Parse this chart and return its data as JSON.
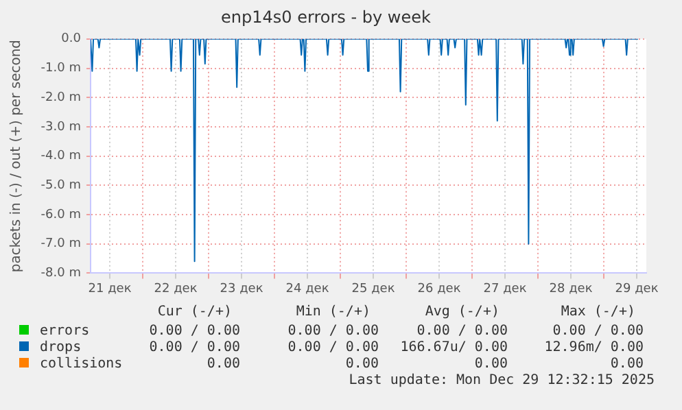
{
  "chart_data": {
    "type": "line",
    "title": "enp14s0 errors - by week",
    "ylabel": "packets in (-) / out (+) per second",
    "xlim": [
      "2025-12-21T05:00",
      "2025-12-29T15:30"
    ],
    "xticks": [
      {
        "value": "2025-12-21T12:00",
        "label": "21 дек"
      },
      {
        "value": "2025-12-22T00:00",
        "label": null
      },
      {
        "value": "2025-12-22T12:00",
        "label": "22 дек"
      },
      {
        "value": "2025-12-23T00:00",
        "label": null
      },
      {
        "value": "2025-12-23T12:00",
        "label": "23 дек"
      },
      {
        "value": "2025-12-24T00:00",
        "label": null
      },
      {
        "value": "2025-12-24T12:00",
        "label": "24 дек"
      },
      {
        "value": "2025-12-25T00:00",
        "label": null
      },
      {
        "value": "2025-12-25T12:00",
        "label": "25 дек"
      },
      {
        "value": "2025-12-26T00:00",
        "label": null
      },
      {
        "value": "2025-12-26T12:00",
        "label": "26 дек"
      },
      {
        "value": "2025-12-27T00:00",
        "label": null
      },
      {
        "value": "2025-12-27T12:00",
        "label": "27 дек"
      },
      {
        "value": "2025-12-28T00:00",
        "label": null
      },
      {
        "value": "2025-12-28T12:00",
        "label": "28 дек"
      },
      {
        "value": "2025-12-29T00:00",
        "label": null
      },
      {
        "value": "2025-12-29T12:00",
        "label": "29 дек"
      }
    ],
    "ylim": [
      -8,
      0
    ],
    "yticks": [
      {
        "value": 0,
        "label": "0.0"
      },
      {
        "value": -1,
        "label": "-1.0 m"
      },
      {
        "value": -2,
        "label": "-2.0 m"
      },
      {
        "value": -3,
        "label": "-3.0 m"
      },
      {
        "value": -4,
        "label": "-4.0 m"
      },
      {
        "value": -5,
        "label": "-5.0 m"
      },
      {
        "value": -6,
        "label": "-6.0 m"
      },
      {
        "value": -7,
        "label": "-7.0 m"
      },
      {
        "value": -8,
        "label": "-8.0 m"
      }
    ],
    "grid": true,
    "legend": "bottom",
    "marker": "none",
    "series": [
      {
        "name": "errors",
        "color": "#00cc00"
      },
      {
        "name": "drops",
        "color": "#0066b3",
        "x": [
          "2025-12-21T05:00",
          "2025-12-21T05:11",
          "2025-12-21T05:36",
          "2025-12-21T06:01",
          "2025-12-21T07:41",
          "2025-12-21T08:06",
          "2025-12-21T08:31",
          "2025-12-21T21:29",
          "2025-12-21T21:54",
          "2025-12-21T22:19",
          "2025-12-21T22:29",
          "2025-12-21T22:54",
          "2025-12-21T23:19",
          "2025-12-22T09:59",
          "2025-12-22T10:24",
          "2025-12-22T10:49",
          "2025-12-22T13:29",
          "2025-12-22T13:54",
          "2025-12-22T14:19",
          "2025-12-22T18:29",
          "2025-12-22T18:54",
          "2025-12-22T19:19",
          "2025-12-22T20:17",
          "2025-12-22T20:42",
          "2025-12-22T21:07",
          "2025-12-22T22:17",
          "2025-12-22T22:42",
          "2025-12-22T23:07",
          "2025-12-23T09:53",
          "2025-12-23T10:18",
          "2025-12-23T10:43",
          "2025-12-23T18:17",
          "2025-12-23T18:42",
          "2025-12-23T19:07",
          "2025-12-24T09:23",
          "2025-12-24T09:48",
          "2025-12-24T10:13",
          "2025-12-24T10:41",
          "2025-12-24T11:06",
          "2025-12-24T11:31",
          "2025-12-24T18:59",
          "2025-12-24T19:24",
          "2025-12-24T19:49",
          "2025-12-25T00:29",
          "2025-12-25T00:54",
          "2025-12-25T01:19",
          "2025-12-25T09:35",
          "2025-12-25T10:00",
          "2025-12-25T10:25",
          "2025-12-25T21:29",
          "2025-12-25T21:54",
          "2025-12-25T22:19",
          "2025-12-26T07:47",
          "2025-12-26T08:12",
          "2025-12-26T08:37",
          "2025-12-26T12:23",
          "2025-12-26T12:48",
          "2025-12-26T13:13",
          "2025-12-26T14:53",
          "2025-12-26T15:18",
          "2025-12-26T15:43",
          "2025-12-26T17:23",
          "2025-12-26T17:48",
          "2025-12-26T18:13",
          "2025-12-26T21:17",
          "2025-12-26T21:42",
          "2025-12-26T22:07",
          "2025-12-27T01:59",
          "2025-12-27T02:24",
          "2025-12-27T02:49",
          "2025-12-27T02:59",
          "2025-12-27T03:24",
          "2025-12-27T03:49",
          "2025-12-27T08:47",
          "2025-12-27T09:12",
          "2025-12-27T09:37",
          "2025-12-27T18:11",
          "2025-12-27T18:36",
          "2025-12-27T19:01",
          "2025-12-27T20:11",
          "2025-12-27T20:36",
          "2025-12-27T21:01",
          "2025-12-28T09:53",
          "2025-12-28T10:18",
          "2025-12-28T10:43",
          "2025-12-28T11:05",
          "2025-12-28T11:30",
          "2025-12-28T11:55",
          "2025-12-28T12:23",
          "2025-12-28T12:48",
          "2025-12-28T13:13",
          "2025-12-28T23:29",
          "2025-12-28T23:54",
          "2025-12-29T00:19",
          "2025-12-29T07:53",
          "2025-12-29T08:18",
          "2025-12-29T08:43",
          "2025-12-29T12:30"
        ],
        "values": [
          0,
          0,
          -1.1,
          0,
          0,
          -0.3,
          0,
          0,
          -1.1,
          0,
          0,
          -0.55,
          0,
          0,
          -1.1,
          0,
          0,
          -1.1,
          0,
          0,
          -7.6,
          0,
          0,
          -0.55,
          0,
          0,
          -0.85,
          0,
          0,
          -1.65,
          0,
          0,
          -0.55,
          0,
          0,
          -0.55,
          0,
          0,
          -1.1,
          0,
          0,
          -0.55,
          0,
          0,
          -0.55,
          0,
          0,
          -1.1,
          0,
          0,
          -1.8,
          0,
          0,
          -0.55,
          0,
          0,
          -0.55,
          0,
          0,
          -0.55,
          0,
          0,
          -0.3,
          0,
          0,
          -2.25,
          0,
          0,
          -0.55,
          0,
          0,
          -0.55,
          0,
          0,
          -2.8,
          0,
          0,
          -0.85,
          0,
          0,
          -7.0,
          0,
          0,
          -0.3,
          0,
          0,
          -0.55,
          0,
          0,
          -0.55,
          0,
          0,
          -0.25,
          0,
          0,
          -0.55,
          0,
          0
        ]
      },
      {
        "name": "collisions",
        "color": "#ff7f00"
      }
    ],
    "annotations": [
      "Cur (-/+)",
      "Min (-/+)",
      "Avg (-/+)",
      "Max (-/+)",
      "0.00 / 0.00",
      "0.00 / 0.00",
      "0.00 / 0.00",
      "0.00 / 0.00",
      "0.00 / 0.00",
      "0.00 / 0.00",
      "166.67u/ 0.00",
      "12.96m/ 0.00",
      "0.00",
      "0.00",
      "0.00",
      "0.00",
      "Last update: Mon Dec 29 12:32:15 2025"
    ]
  }
}
